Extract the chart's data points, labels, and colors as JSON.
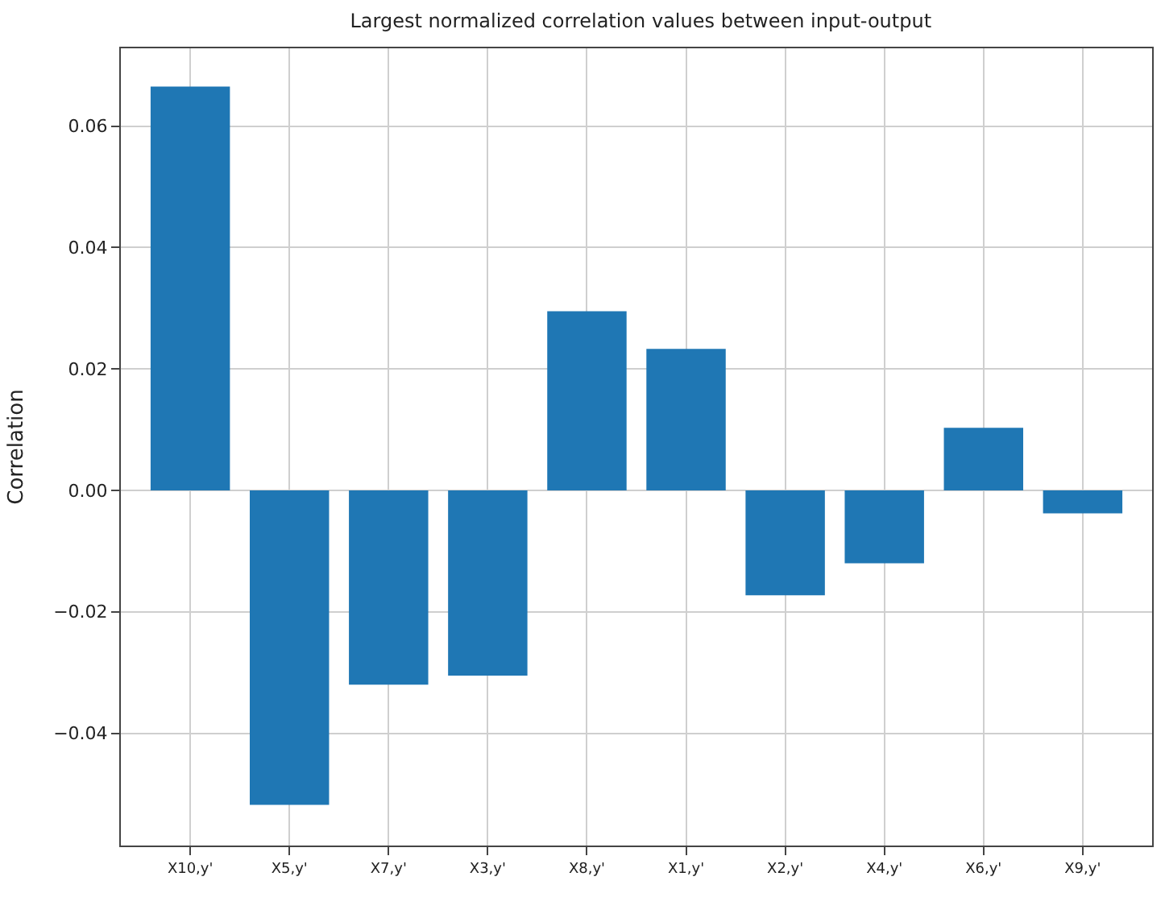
{
  "chart_data": {
    "type": "bar",
    "title": "Largest normalized correlation values between input-output",
    "ylabel": "Correlation",
    "categories": [
      "X10,y'",
      "X5,y'",
      "X7,y'",
      "X3,y'",
      "X8,y'",
      "X1,y'",
      "X2,y'",
      "X4,y'",
      "X6,y'",
      "X9,y'"
    ],
    "values": [
      0.0665,
      -0.0518,
      -0.032,
      -0.0305,
      0.0295,
      0.0233,
      -0.0173,
      -0.012,
      0.0103,
      -0.0038
    ],
    "color": "#1f77b4",
    "ylim": [
      -0.0585,
      0.0728
    ],
    "yticks": [
      {
        "value": -0.04,
        "label": "−0.04"
      },
      {
        "value": -0.02,
        "label": "−0.02"
      },
      {
        "value": 0,
        "label": "0.00"
      },
      {
        "value": 0.02,
        "label": "0.02"
      },
      {
        "value": 0.04,
        "label": "0.04"
      },
      {
        "value": 0.06,
        "label": "0.06"
      }
    ],
    "grid": true
  }
}
